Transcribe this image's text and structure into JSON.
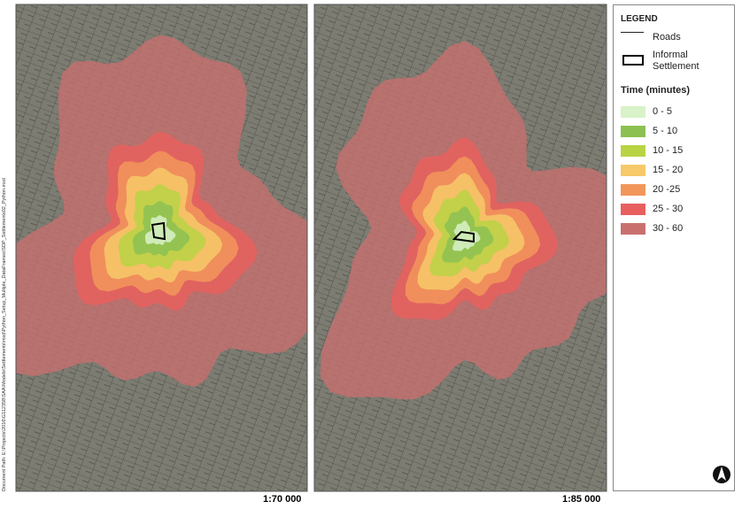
{
  "maps": [
    {
      "scale": "1:70 000"
    },
    {
      "scale": "1:85 000"
    }
  ],
  "document_path": "Document Path: E:\\Projects\\2016\\G112358\\SAA\\Models\\Settlements\\mxd\\Python_Setup_Multiple_DataFrames\\SDP_Settlements02_Python.mxd",
  "legend": {
    "title": "LEGEND",
    "roads": "Roads",
    "informal_settlement": "Informal Settlement",
    "time_title": "Time (minutes)",
    "classes": [
      {
        "label": "0 - 5",
        "color": "#d9f2c9"
      },
      {
        "label": "5 - 10",
        "color": "#8cc152"
      },
      {
        "label": "10 - 15",
        "color": "#b8d444"
      },
      {
        "label": "15 - 20",
        "color": "#f7c96a"
      },
      {
        "label": "20 -25",
        "color": "#f2975a"
      },
      {
        "label": "25 - 30",
        "color": "#e8605e"
      },
      {
        "label": "30 - 60",
        "color": "#c9706e"
      }
    ]
  }
}
